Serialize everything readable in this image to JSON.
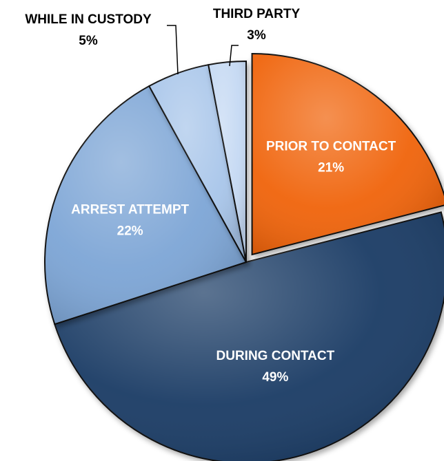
{
  "chart_data": {
    "type": "pie",
    "title": "",
    "slices": [
      {
        "label": "PRIOR TO CONTACT",
        "value": 21,
        "display": "21%",
        "color": "#f0650a",
        "text_color": "#ffffff",
        "exploded": true
      },
      {
        "label": "DURING CONTACT",
        "value": 49,
        "display": "49%",
        "color": "#1f3d66",
        "text_color": "#ffffff",
        "exploded": false
      },
      {
        "label": "ARREST ATTEMPT",
        "value": 22,
        "display": "22%",
        "color": "#7ea6d6",
        "text_color": "#ffffff",
        "exploded": false
      },
      {
        "label": "WHILE IN CUSTODY",
        "value": 5,
        "display": "5%",
        "color": "#a9c6ea",
        "text_color": "#000000",
        "exploded": false
      },
      {
        "label": "THIRD PARTY",
        "value": 3,
        "display": "3%",
        "color": "#c5d9f3",
        "text_color": "#000000",
        "exploded": false
      }
    ]
  }
}
